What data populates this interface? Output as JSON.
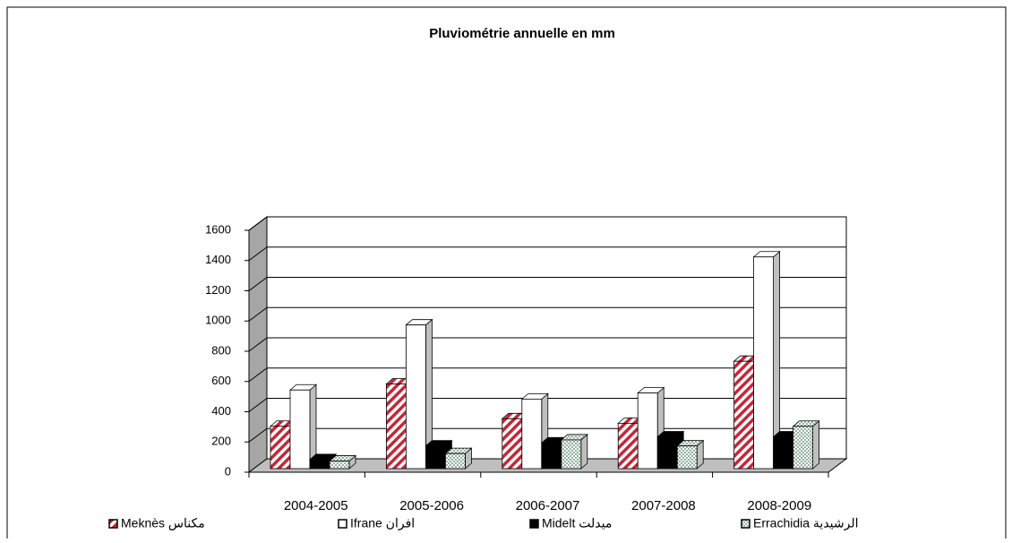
{
  "chart_data": {
    "type": "bar3d",
    "title": "Pluviométrie annuelle  en mm",
    "categories": [
      "2004-2005",
      "2005-2006",
      "2006-2007",
      "2007-2008",
      "2008-2009"
    ],
    "series": [
      {
        "name": "Meknès  مكناس",
        "color": "#c0283a",
        "pattern": "hatch",
        "values": [
          280,
          560,
          330,
          300,
          710
        ]
      },
      {
        "name": "Ifrane  افران",
        "color": "#ffffff",
        "pattern": "solid",
        "values": [
          520,
          950,
          460,
          500,
          1400
        ]
      },
      {
        "name": "Midelt  ميدلت",
        "color": "#000000",
        "pattern": "solid",
        "values": [
          60,
          150,
          170,
          210,
          210
        ]
      },
      {
        "name": "Errachidia  الرشيدية",
        "color": "#4a7a5a",
        "pattern": "dots",
        "values": [
          50,
          100,
          190,
          150,
          280
        ]
      }
    ],
    "ylim": [
      0,
      1600
    ],
    "yticks": [
      0,
      200,
      400,
      600,
      800,
      1000,
      1200,
      1400,
      1600
    ],
    "grid": true
  }
}
